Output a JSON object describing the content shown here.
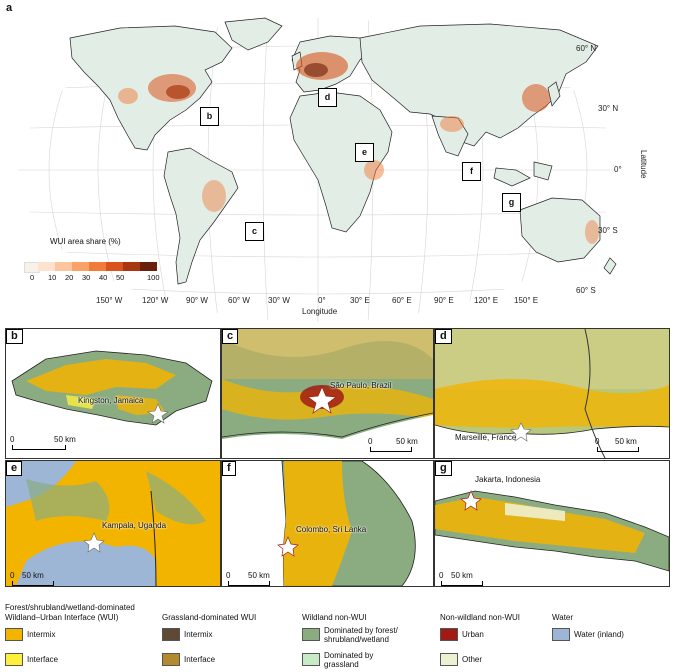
{
  "panel_a": {
    "tag": "a",
    "ramp_title": "WUI area share (%)",
    "ramp_ticks": [
      "0",
      "10",
      "20",
      "30",
      "40",
      "50",
      "100"
    ],
    "ramp_colors": [
      "#f7f1e9",
      "#fde3cf",
      "#fcc59d",
      "#f9a268",
      "#f07b3b",
      "#d8531d",
      "#a83710",
      "#6b1f0a"
    ],
    "lat_labels": [
      "60° N",
      "30° N",
      "0°",
      "30° S",
      "60° S"
    ],
    "lon_labels": [
      "150° W",
      "120° W",
      "90° W",
      "60° W",
      "30° W",
      "0°",
      "30° E",
      "60° E",
      "90° E",
      "120° E",
      "150° E"
    ],
    "xlabel": "Longitude",
    "ylabel": "Latitude",
    "boxes": [
      "b",
      "c",
      "d",
      "e",
      "f",
      "g"
    ]
  },
  "panels": [
    {
      "tag": "b",
      "city": "Kingston, Jamaica",
      "scale_left": "0",
      "scale_right": "50 km"
    },
    {
      "tag": "c",
      "city": "São Paulo, Brazil",
      "scale_left": "0",
      "scale_right": "50 km"
    },
    {
      "tag": "d",
      "city": "Marseille, France",
      "scale_left": "0",
      "scale_right": "50 km"
    },
    {
      "tag": "e",
      "city": "Kampala, Uganda",
      "scale_left": "0",
      "scale_right": "50 km"
    },
    {
      "tag": "f",
      "city": "Colombo, Sri Lanka",
      "scale_left": "0",
      "scale_right": "50 km"
    },
    {
      "tag": "g",
      "city": "Jakarta, Indonesia",
      "scale_left": "0",
      "scale_right": "50 km"
    }
  ],
  "legend": {
    "groups": [
      {
        "title": "Forest/shrubland/wetland-dominated Wildland–Urban Interface (WUI)",
        "items": [
          {
            "label": "Intermix",
            "color": "#f3b400"
          },
          {
            "label": "Interface",
            "color": "#fdf03c"
          }
        ]
      },
      {
        "title": "Grassland-dominated WUI",
        "items": [
          {
            "label": "Intermix",
            "color": "#5e4a34"
          },
          {
            "label": "Interface",
            "color": "#b38a2e"
          }
        ]
      },
      {
        "title": "Wildland non-WUI",
        "items": [
          {
            "label": "Dominated by forest/ shrubland/wetland",
            "color": "#8aac80"
          },
          {
            "label": "Dominated by grassland",
            "color": "#c8ebc6"
          }
        ]
      },
      {
        "title": "Non-wildland non-WUI",
        "items": [
          {
            "label": "Urban",
            "color": "#a11b14"
          },
          {
            "label": "Other",
            "color": "#eef0d2"
          }
        ]
      },
      {
        "title": "Water",
        "items": [
          {
            "label": "Water (inland)",
            "color": "#9db6d5"
          }
        ]
      }
    ]
  }
}
